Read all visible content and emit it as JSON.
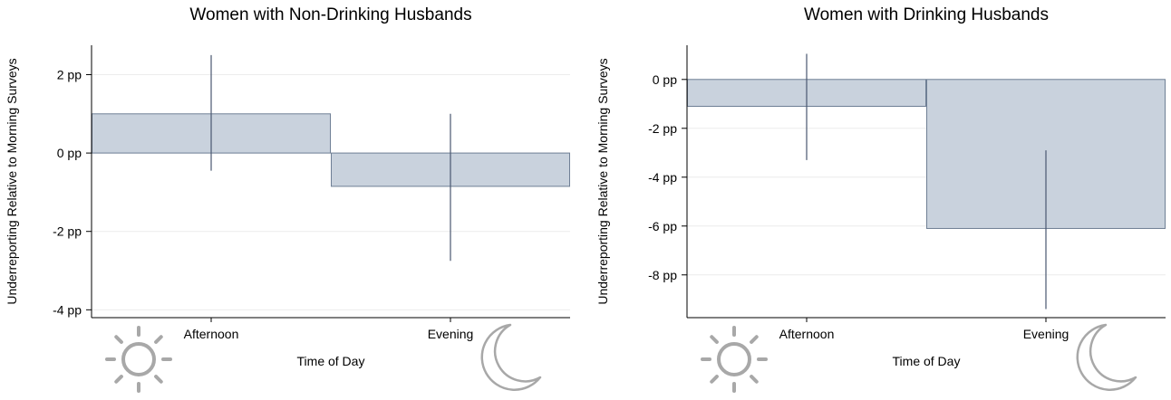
{
  "colors": {
    "bar_fill": "#c9d2dd",
    "bar_stroke": "#6f7f95",
    "ci_line": "#4a5870",
    "axis": "#000000",
    "grid": "#ececec",
    "icon": "#a8a8a8"
  },
  "icons": [
    "sun-icon",
    "moon-icon"
  ],
  "chart_data": [
    {
      "type": "bar",
      "title": "Women with Non-Drinking Husbands",
      "xlabel": "Time of Day",
      "ylabel": "Underreporting Relative to Morning Surveys",
      "categories": [
        "Afternoon",
        "Evening"
      ],
      "values": [
        1.0,
        -0.85
      ],
      "ci_low": [
        -0.45,
        -2.75
      ],
      "ci_high": [
        2.5,
        1.0
      ],
      "ylim": [
        -4.2,
        2.75
      ],
      "yticks": [
        2,
        0,
        -2,
        -4
      ],
      "ytick_labels": [
        "2 pp",
        "0 pp",
        "-2 pp",
        "-4 pp"
      ],
      "grid": true,
      "legend": "none"
    },
    {
      "type": "bar",
      "title": "Women with Drinking Husbands",
      "xlabel": "Time of Day",
      "ylabel": "Underreporting Relative to Morning Surveys",
      "categories": [
        "Afternoon",
        "Evening"
      ],
      "values": [
        -1.1,
        -6.1
      ],
      "ci_low": [
        -3.3,
        -9.4
      ],
      "ci_high": [
        1.05,
        -2.9
      ],
      "ylim": [
        -9.75,
        1.4
      ],
      "yticks": [
        0,
        -2,
        -4,
        -6,
        -8
      ],
      "ytick_labels": [
        "0 pp",
        "-2 pp",
        "-4 pp",
        "-6 pp",
        "-8 pp"
      ],
      "grid": true,
      "legend": "none"
    }
  ]
}
